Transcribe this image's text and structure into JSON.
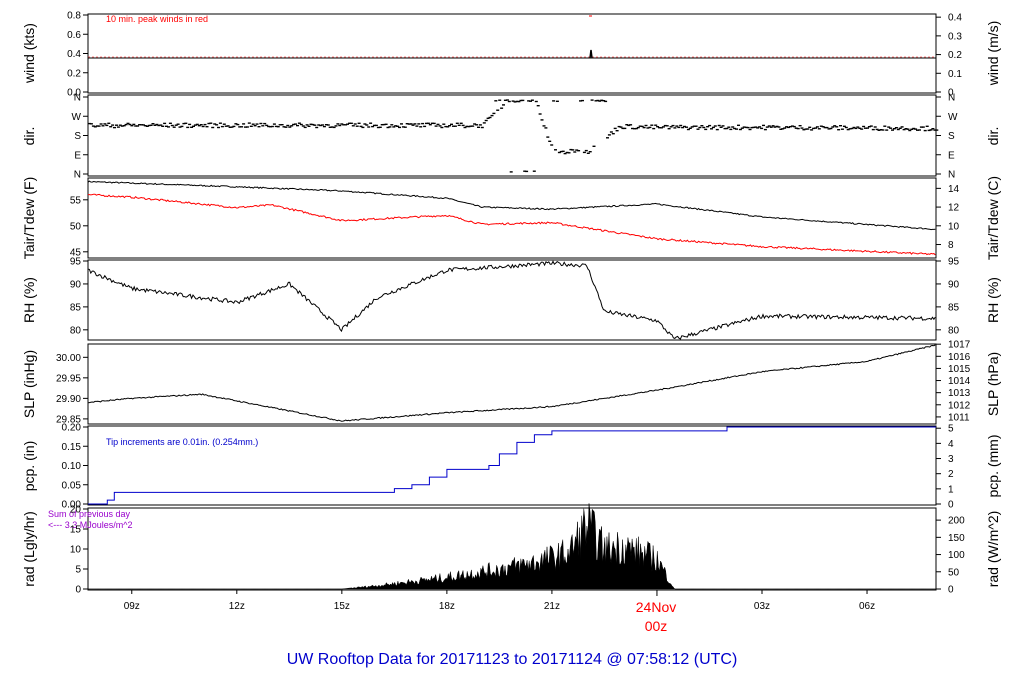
{
  "footer": {
    "title": "UW Rooftop Data for 20171123  to  20171124 @ 07:58:12  (UTC)"
  },
  "x_axis": {
    "labels": [
      "09z",
      "12z",
      "15z",
      "18z",
      "21z",
      "03z",
      "06z"
    ],
    "day_label": "24Nov",
    "day_hour": "00z"
  },
  "panels": {
    "wind": {
      "ylabel_left": "wind (kts)",
      "ylabel_right": "wind (m/s)",
      "note": "10 min. peak winds in red",
      "left_ticks": [
        "0.8",
        "0.6",
        "0.4",
        "0.2",
        "0.0"
      ],
      "right_ticks": [
        "0.4",
        "0.3",
        "0.2",
        "0.1",
        "0"
      ]
    },
    "dir": {
      "ylabel_left": "dir.",
      "ylabel_right": "dir.",
      "left_ticks": [
        "N",
        "W",
        "S",
        "E",
        "N"
      ],
      "right_ticks": [
        "N",
        "W",
        "S",
        "E",
        "N"
      ]
    },
    "temp": {
      "ylabel_left": "Tair/Tdew (F)",
      "ylabel_right": "Tair/Tdew (C)",
      "left_ticks": [
        "55",
        "50",
        "45"
      ],
      "right_ticks": [
        "14",
        "12",
        "10",
        "8"
      ]
    },
    "rh": {
      "ylabel_left": "RH (%)",
      "ylabel_right": "RH (%)",
      "left_ticks": [
        "95",
        "90",
        "85",
        "80"
      ],
      "right_ticks": [
        "95",
        "90",
        "85",
        "80"
      ]
    },
    "slp": {
      "ylabel_left": "SLP (inHg)",
      "ylabel_right": "SLP (hPa)",
      "left_ticks": [
        "30.00",
        "29.95",
        "29.90",
        "29.85"
      ],
      "right_ticks": [
        "1017",
        "1016",
        "1015",
        "1014",
        "1013",
        "1012",
        "1011"
      ]
    },
    "pcp": {
      "ylabel_left": "pcp. (in)",
      "ylabel_right": "pcp. (mm)",
      "note": "Tip increments are 0.01in. (0.254mm.)",
      "left_ticks": [
        "0.20",
        "0.15",
        "0.10",
        "0.05",
        "0.00"
      ],
      "right_ticks": [
        "5",
        "4",
        "3",
        "2",
        "1",
        "0"
      ]
    },
    "rad": {
      "ylabel_left": "rad (Lgly/hr)",
      "ylabel_right": "rad (W/m^2)",
      "note_line1": "Sum of previous day",
      "note_line2": "<--- 3.3 MJoules/m^2",
      "left_ticks": [
        "20",
        "15",
        "10",
        "5",
        "0"
      ],
      "right_ticks": [
        "200",
        "150",
        "100",
        "50",
        "0"
      ]
    }
  },
  "colors": {
    "dew": "#ff0000",
    "pcp": "#0000cc",
    "note_rad": "#9900cc",
    "title": "#0000cc",
    "day_label": "#ff0000"
  },
  "chart_data": [
    {
      "type": "line",
      "ylabel": "wind (kts)",
      "xrange_hours_utc": [
        7.75,
        31.97
      ],
      "ylim": [
        0,
        0.8
      ],
      "series": [
        {
          "name": "10 min. peak winds",
          "values_desc": "flat",
          "x": [
            7.75,
            22.9,
            23.0,
            23.1,
            31.97
          ],
          "y": [
            0.35,
            0.35,
            0.42,
            0.35,
            0.35
          ]
        }
      ]
    },
    {
      "type": "scatter",
      "ylabel": "dir.",
      "ylim": [
        "N",
        "W",
        "S",
        "E",
        "N"
      ],
      "series": [
        {
          "x": [
            7.75,
            19.0,
            19.7,
            20.5,
            21.0,
            22.0,
            22.9,
            24.0,
            27.0,
            31.97
          ],
          "y": [
            230,
            230,
            355,
            355,
            100,
            100,
            225,
            220,
            220,
            215
          ]
        }
      ]
    },
    {
      "type": "line",
      "ylabel": "Tair/Tdew (F)",
      "ylim": [
        44,
        59
      ],
      "series": [
        {
          "x": [
            7.75,
            9.0,
            12.0,
            15.0,
            18.0,
            19.0,
            21.0,
            24.0,
            27.0,
            31.97
          ],
          "y": [
            58.5,
            58.2,
            57.5,
            56.7,
            55.3,
            53.6,
            53.2,
            54.2,
            51.7,
            49.3
          ]
        },
        {
          "x": [
            7.75,
            9.0,
            12.0,
            13.0,
            15.0,
            18.0,
            19.0,
            21.0,
            24.0,
            27.0,
            31.97
          ],
          "y": [
            56.0,
            55.5,
            53.5,
            54.0,
            51.0,
            52.0,
            50.3,
            50.6,
            47.5,
            46.0,
            44.5
          ]
        }
      ]
    },
    {
      "type": "line",
      "ylabel": "RH (%)",
      "ylim": [
        78,
        95
      ],
      "series": [
        {
          "x": [
            7.75,
            9.0,
            12.0,
            13.5,
            15.0,
            16.0,
            18.0,
            21.0,
            22.0,
            22.5,
            24.0,
            24.5,
            27.0,
            31.97
          ],
          "y": [
            93.0,
            89.0,
            86.0,
            90.0,
            80.0,
            87.0,
            93.0,
            94.5,
            94.0,
            84.0,
            82.0,
            78.0,
            83.0,
            82.5
          ]
        }
      ]
    },
    {
      "type": "line",
      "ylabel": "SLP (inHg)",
      "ylim": [
        29.84,
        30.03
      ],
      "series": [
        {
          "x": [
            7.75,
            9.0,
            11.0,
            15.0,
            18.0,
            21.0,
            24.0,
            27.0,
            30.0,
            31.97
          ],
          "y": [
            29.89,
            29.9,
            29.91,
            29.845,
            29.865,
            29.88,
            29.92,
            29.965,
            29.99,
            30.03
          ]
        }
      ]
    },
    {
      "type": "line",
      "ylabel": "pcp. (in)",
      "ylim": [
        0,
        0.2
      ],
      "series": [
        {
          "x": [
            7.75,
            8.2,
            8.3,
            8.5,
            16.0,
            16.5,
            17.0,
            17.5,
            18.0,
            19.2,
            19.5,
            20.0,
            20.5,
            21.0,
            23.0,
            25.5,
            26.0,
            31.97
          ],
          "y": [
            0.0,
            0.0,
            0.01,
            0.03,
            0.03,
            0.04,
            0.05,
            0.07,
            0.09,
            0.1,
            0.13,
            0.16,
            0.18,
            0.19,
            0.19,
            0.19,
            0.2,
            0.2
          ]
        }
      ]
    },
    {
      "type": "area",
      "ylabel": "rad (Lgly/hr)",
      "ylim": [
        0,
        20
      ],
      "series": [
        {
          "x": [
            7.75,
            15.0,
            16.0,
            18.0,
            19.5,
            20.5,
            21.5,
            22.0,
            22.5,
            23.0,
            24.0,
            24.5,
            31.97
          ],
          "y": [
            0,
            0,
            1,
            3.5,
            6,
            8,
            11,
            19.5,
            12,
            13,
            9,
            0,
            0
          ]
        }
      ]
    }
  ]
}
